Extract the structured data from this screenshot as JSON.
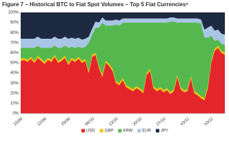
{
  "chart_data": {
    "type": "stacked_area",
    "title": "Figure 7 – Historical BTC to Fiat Spot Volumes – Top 5 Fiat Currencies⁵",
    "categories": [
      "15/09",
      null,
      null,
      null,
      null,
      null,
      null,
      "22/09",
      null,
      null,
      null,
      null,
      null,
      null,
      "29/09",
      null,
      null,
      null,
      null,
      null,
      null,
      "06/10",
      null,
      null,
      null,
      null,
      null,
      null,
      "13/10",
      null,
      null,
      null,
      null,
      null,
      null,
      "20/10",
      null,
      null,
      null,
      null,
      null,
      null,
      "27/10",
      null,
      null,
      null,
      null,
      null,
      null,
      "03/11",
      null,
      null,
      null,
      null,
      null,
      null,
      "10/11",
      null,
      null,
      null,
      null
    ],
    "series": [
      {
        "name": "USD",
        "color": "#e3262b",
        "values": [
          52,
          53,
          51,
          54,
          50,
          55,
          52,
          49,
          53,
          51,
          56,
          50,
          52,
          55,
          48,
          53,
          51,
          54,
          50,
          52,
          40,
          56,
          58,
          45,
          36,
          50,
          47,
          42,
          30,
          28,
          33,
          26,
          24,
          22,
          25,
          23,
          20,
          38,
          42,
          25,
          22,
          24,
          21,
          23,
          19,
          22,
          36,
          24,
          21,
          22,
          35,
          20,
          18,
          15,
          13,
          25,
          50,
          62,
          65,
          60,
          58
        ]
      },
      {
        "name": "GBP",
        "color": "#f3c300",
        "values": [
          2,
          2,
          2,
          2,
          2,
          2,
          2,
          2,
          2,
          2,
          2,
          2,
          2,
          2,
          2,
          2,
          2,
          2,
          2,
          2,
          2,
          2,
          2,
          2,
          2,
          2,
          2,
          2,
          2,
          2,
          2,
          2,
          2,
          2,
          2,
          2,
          2,
          2,
          2,
          2,
          2,
          2,
          2,
          2,
          2,
          2,
          2,
          2,
          2,
          2,
          2,
          2,
          2,
          2,
          2,
          2,
          2,
          2,
          2,
          2,
          2
        ]
      },
      {
        "name": "KRW",
        "color": "#55b84e",
        "values": [
          11,
          10,
          12,
          9,
          13,
          10,
          11,
          14,
          10,
          12,
          9,
          13,
          11,
          10,
          15,
          11,
          12,
          10,
          13,
          12,
          28,
          20,
          25,
          38,
          52,
          35,
          38,
          43,
          56,
          57,
          55,
          62,
          64,
          66,
          63,
          65,
          68,
          50,
          46,
          63,
          66,
          64,
          67,
          65,
          70,
          67,
          52,
          64,
          67,
          66,
          53,
          68,
          70,
          72,
          60,
          48,
          25,
          8,
          6,
          7,
          8
        ]
      },
      {
        "name": "EUR",
        "color": "#a8c5e6",
        "values": [
          9,
          9,
          9,
          9,
          9,
          9,
          9,
          9,
          9,
          9,
          9,
          9,
          9,
          9,
          9,
          9,
          9,
          9,
          8,
          8,
          6,
          6,
          6,
          5,
          5,
          5,
          5,
          5,
          5,
          5,
          4,
          4,
          4,
          4,
          4,
          4,
          4,
          4,
          4,
          4,
          4,
          4,
          4,
          4,
          4,
          4,
          4,
          4,
          4,
          4,
          4,
          4,
          4,
          4,
          8,
          10,
          10,
          10,
          10,
          10,
          10
        ]
      },
      {
        "name": "JPY",
        "color": "#1e2942",
        "values": [
          26,
          26,
          26,
          26,
          26,
          24,
          26,
          26,
          26,
          26,
          24,
          26,
          26,
          24,
          26,
          25,
          26,
          25,
          27,
          26,
          24,
          16,
          9,
          10,
          5,
          8,
          8,
          8,
          7,
          8,
          6,
          6,
          6,
          6,
          6,
          6,
          6,
          6,
          6,
          6,
          6,
          6,
          6,
          6,
          5,
          5,
          6,
          6,
          6,
          6,
          6,
          6,
          6,
          7,
          17,
          15,
          13,
          18,
          17,
          21,
          22
        ]
      }
    ],
    "ylim": [
      0,
      100
    ],
    "yticks": [
      {
        "value": 0,
        "label": "0%"
      },
      {
        "value": 10,
        "label": "10%"
      },
      {
        "value": 20,
        "label": "20%"
      },
      {
        "value": 30,
        "label": "30%"
      },
      {
        "value": 40,
        "label": "40%"
      },
      {
        "value": 50,
        "label": "50%"
      },
      {
        "value": 60,
        "label": "60%"
      },
      {
        "value": 70,
        "label": "70%"
      },
      {
        "value": 80,
        "label": "80%"
      },
      {
        "value": 90,
        "label": "90%"
      },
      {
        "value": 100,
        "label": "100%"
      }
    ],
    "grid": true,
    "legend": "bottom"
  }
}
